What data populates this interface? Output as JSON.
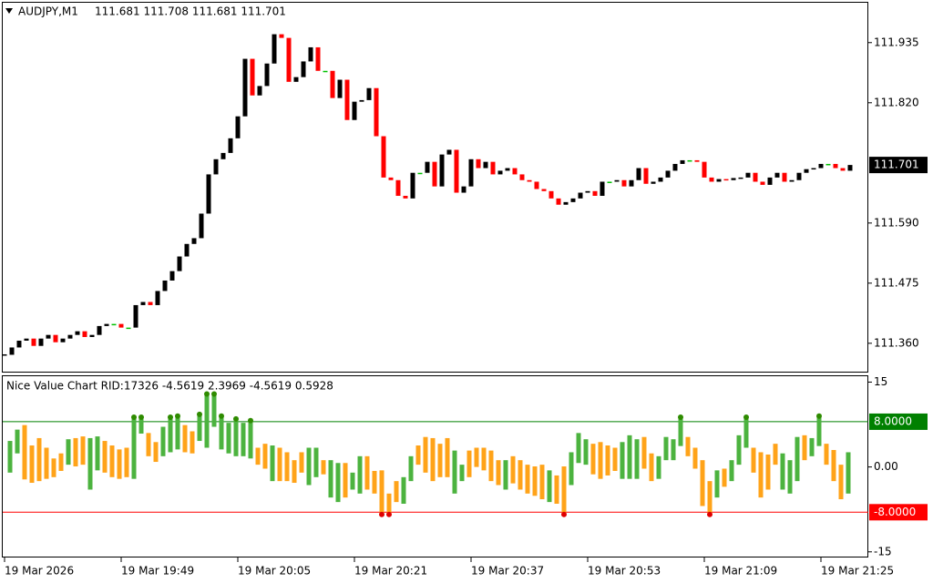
{
  "chart_data": [
    {
      "type": "candlestick",
      "title": "AUDJPY,M1",
      "quote": "111.681 111.708 111.681 111.701",
      "up_color": "#000000",
      "down_color": "#ff0000",
      "flat_color": "#00c000",
      "categories": [
        "19 Mar 2026",
        null,
        null,
        null,
        null,
        null,
        null,
        null,
        null,
        null,
        null,
        null,
        null,
        null,
        null,
        null,
        "19 Mar 19:49",
        null,
        null,
        null,
        null,
        null,
        null,
        null,
        null,
        null,
        null,
        null,
        null,
        null,
        null,
        null,
        "19 Mar 20:05",
        null,
        null,
        null,
        null,
        null,
        null,
        null,
        null,
        null,
        null,
        null,
        null,
        null,
        null,
        null,
        "19 Mar 20:21",
        null,
        null,
        null,
        null,
        null,
        null,
        null,
        null,
        null,
        null,
        null,
        null,
        null,
        null,
        null,
        "19 Mar 20:37",
        null,
        null,
        null,
        null,
        null,
        null,
        null,
        null,
        null,
        null,
        null,
        null,
        null,
        null,
        null,
        "19 Mar 20:53",
        null,
        null,
        null,
        null,
        null,
        null,
        null,
        null,
        null,
        null,
        null,
        null,
        null,
        null,
        null,
        "19 Mar 21:09",
        null,
        null,
        null,
        null,
        null,
        null,
        null,
        null,
        null,
        null,
        null,
        null,
        null,
        null,
        null,
        "19 Mar 21:25",
        null,
        null,
        null,
        null
      ],
      "values": [
        111.338,
        111.352,
        111.365,
        111.369,
        111.355,
        111.369,
        111.376,
        111.362,
        111.369,
        111.376,
        111.383,
        111.372,
        111.376,
        111.393,
        111.397,
        111.397,
        111.39,
        111.39,
        111.433,
        111.439,
        111.433,
        111.46,
        111.48,
        111.498,
        111.526,
        111.55,
        111.561,
        111.608,
        111.683,
        111.712,
        111.724,
        111.752,
        111.794,
        111.904,
        111.834,
        111.852,
        111.895,
        111.951,
        111.944,
        111.86,
        111.869,
        111.899,
        111.926,
        111.881,
        111.881,
        111.829,
        111.864,
        111.787,
        111.822,
        111.825,
        111.848,
        111.756,
        111.677,
        111.672,
        111.642,
        111.637,
        111.686,
        111.686,
        111.707,
        111.66,
        111.721,
        111.73,
        111.648,
        111.66,
        111.712,
        111.695,
        111.707,
        111.683,
        111.69,
        111.695,
        111.683,
        111.672,
        111.669,
        111.655,
        111.651,
        111.637,
        111.625,
        111.63,
        111.637,
        111.648,
        111.651,
        111.642,
        111.669,
        111.669,
        111.672,
        111.66,
        111.672,
        111.695,
        111.665,
        111.669,
        111.677,
        111.69,
        111.703,
        111.71,
        111.71,
        111.707,
        111.677,
        111.669,
        111.674,
        111.672,
        111.676,
        111.677,
        111.686,
        111.669,
        111.663,
        111.677,
        111.686,
        111.669,
        111.672,
        111.686,
        111.693,
        111.695,
        111.703,
        111.703,
        111.695,
        111.69,
        111.701
      ],
      "ylim": [
        111.304,
        112.013
      ],
      "yticks": [
        {
          "value": 111.36,
          "label": "111.360"
        },
        111.475,
        {
          "value": 111.59,
          "label": "111.590"
        },
        {
          "value": 111.82,
          "label": "111.820"
        },
        111.935
      ]
    },
    {
      "type": "range_bar",
      "title": "Nice Value Chart RID:17326 -4.5619 2.3969 -4.5619 0.5928",
      "values": [
        [
          -1,
          4.6
        ],
        [
          2.4,
          6.6
        ],
        [
          -2.2,
          7.4
        ],
        [
          -2.8,
          3.8
        ],
        [
          -2.5,
          5.1
        ],
        [
          -2.1,
          3.4
        ],
        [
          -1.8,
          1.5
        ],
        [
          -0.7,
          2.4
        ],
        [
          0.4,
          4.9
        ],
        [
          0.1,
          5.1
        ],
        [
          0.4,
          5.4
        ],
        [
          -4,
          5.1
        ],
        [
          -0.6,
          5.4
        ],
        [
          -1,
          4.6
        ],
        [
          -1.8,
          3.8
        ],
        [
          -2.1,
          3.1
        ],
        [
          -1.8,
          3.4
        ],
        [
          -2.1,
          8.8
        ],
        [
          5.9,
          8.8
        ],
        [
          1.9,
          6
        ],
        [
          0.9,
          4.4
        ],
        [
          1.9,
          7.1
        ],
        [
          2.6,
          8.8
        ],
        [
          3.1,
          9
        ],
        [
          2.6,
          7.4
        ],
        [
          2.4,
          6.3
        ],
        [
          4.6,
          9.3
        ],
        [
          3.4,
          12.9
        ],
        [
          7.1,
          12.9
        ],
        [
          3.1,
          9
        ],
        [
          2.4,
          7.8
        ],
        [
          1.9,
          8.5
        ],
        [
          1.9,
          7.8
        ],
        [
          1.5,
          8.2
        ],
        [
          0.4,
          3.4
        ],
        [
          -0.3,
          4.1
        ],
        [
          -2.5,
          3.8
        ],
        [
          -2.5,
          3.4
        ],
        [
          -2.5,
          2.6
        ],
        [
          -2.8,
          1.2
        ],
        [
          -1,
          2.6
        ],
        [
          -3.2,
          3.4
        ],
        [
          -1.8,
          3.4
        ],
        [
          -1.3,
          1.2
        ],
        [
          -5.4,
          1.2
        ],
        [
          -6.2,
          0.7
        ],
        [
          -5.4,
          0.7
        ],
        [
          -4,
          -1
        ],
        [
          -4.7,
          1.9
        ],
        [
          -4,
          1.9
        ],
        [
          -4.7,
          -0.7
        ],
        [
          -8.4,
          -0.6
        ],
        [
          -8.4,
          -4.7
        ],
        [
          -6.2,
          -2.5
        ],
        [
          -6.5,
          -1.8
        ],
        [
          -2.5,
          1.9
        ],
        [
          0.4,
          3.8
        ],
        [
          -1,
          5.3
        ],
        [
          -2.5,
          5.1
        ],
        [
          -1.8,
          4.1
        ],
        [
          -1.8,
          5.1
        ],
        [
          -4.7,
          2.9
        ],
        [
          -2.5,
          0.4
        ],
        [
          -1.8,
          2.9
        ],
        [
          0,
          3.4
        ],
        [
          -0.6,
          3.4
        ],
        [
          -2.5,
          2.9
        ],
        [
          -3.2,
          1.2
        ],
        [
          -4,
          1.2
        ],
        [
          -2.9,
          1.9
        ],
        [
          -4,
          1.2
        ],
        [
          -4.7,
          0.4
        ],
        [
          -5.1,
          0.1
        ],
        [
          -5.7,
          0.4
        ],
        [
          -6.2,
          -0.6
        ],
        [
          -6.5,
          -1.5
        ],
        [
          -8.4,
          0.1
        ],
        [
          -3.2,
          2.6
        ],
        [
          0.7,
          6
        ],
        [
          0.4,
          4.9
        ],
        [
          -1.3,
          4.1
        ],
        [
          -2.1,
          4.4
        ],
        [
          -1.5,
          3.8
        ],
        [
          -0.7,
          3.4
        ],
        [
          -2.1,
          4.4
        ],
        [
          -2.1,
          5.6
        ],
        [
          -2.1,
          4.9
        ],
        [
          -0.3,
          5.3
        ],
        [
          -2.5,
          2.4
        ],
        [
          -2.1,
          1.9
        ],
        [
          1.2,
          5.3
        ],
        [
          1.2,
          4.9
        ],
        [
          3.7,
          8.8
        ],
        [
          1.9,
          5.3
        ],
        [
          -0.3,
          3.4
        ],
        [
          -6.9,
          1.2
        ],
        [
          -8.4,
          -2.5
        ],
        [
          -5.4,
          -0.6
        ],
        [
          -3.5,
          -0.3
        ],
        [
          -2.5,
          1.2
        ],
        [
          0.4,
          5.6
        ],
        [
          3.4,
          8.8
        ],
        [
          -1,
          3.4
        ],
        [
          -5.4,
          2.6
        ],
        [
          -4,
          2.2
        ],
        [
          0.4,
          4.1
        ],
        [
          -4,
          2.4
        ],
        [
          -4.7,
          1.2
        ],
        [
          -2.5,
          5.3
        ],
        [
          1.2,
          5.6
        ],
        [
          1.9,
          5.1
        ],
        [
          3.7,
          9
        ],
        [
          0.4,
          4.1
        ],
        [
          -2.5,
          3
        ],
        [
          -5.7,
          0.4
        ],
        [
          -4.7,
          2.6
        ]
      ],
      "colors": [
        "#4cb33f",
        "#4cb33f",
        "#ffa319",
        "#ffa319",
        "#ffa319",
        "#ffa319",
        "#ffa319",
        "#ffa319",
        "#4cb33f",
        "#ffa319",
        "#ffa319",
        "#4cb33f",
        "#4cb33f",
        "#ffa319",
        "#ffa319",
        "#ffa319",
        "#ffa319",
        "#4cb33f",
        "#4cb33f",
        "#ffa319",
        "#ffa319",
        "#4cb33f",
        "#4cb33f",
        "#4cb33f",
        "#ffa319",
        "#ffa319",
        "#4cb33f",
        "#4cb33f",
        "#4cb33f",
        "#4cb33f",
        "#4cb33f",
        "#4cb33f",
        "#4cb33f",
        "#4cb33f",
        "#ffa319",
        "#ffa319",
        "#4cb33f",
        "#ffa319",
        "#ffa319",
        "#ffa319",
        "#ffa319",
        "#4cb33f",
        "#4cb33f",
        "#ffa319",
        "#4cb33f",
        "#4cb33f",
        "#ffa319",
        "#4cb33f",
        "#4cb33f",
        "#ffa319",
        "#ffa319",
        "#ffa319",
        "#ffa319",
        "#ffa319",
        "#4cb33f",
        "#4cb33f",
        "#ffa319",
        "#ffa319",
        "#ffa319",
        "#ffa319",
        "#ffa319",
        "#4cb33f",
        "#4cb33f",
        "#ffa319",
        "#ffa319",
        "#ffa319",
        "#ffa319",
        "#ffa319",
        "#4cb33f",
        "#ffa319",
        "#ffa319",
        "#ffa319",
        "#ffa319",
        "#ffa319",
        "#4cb33f",
        "#ffa319",
        "#ffa319",
        "#4cb33f",
        "#4cb33f",
        "#4cb33f",
        "#ffa319",
        "#ffa319",
        "#ffa319",
        "#ffa319",
        "#4cb33f",
        "#4cb33f",
        "#4cb33f",
        "#ffa319",
        "#ffa319",
        "#4cb33f",
        "#4cb33f",
        "#4cb33f",
        "#4cb33f",
        "#ffa319",
        "#ffa319",
        "#ffa319",
        "#ffa319",
        "#4cb33f",
        "#ffa319",
        "#4cb33f",
        "#4cb33f",
        "#4cb33f",
        "#ffa319",
        "#ffa319",
        "#ffa319",
        "#ffa319",
        "#4cb33f",
        "#4cb33f",
        "#4cb33f",
        "#ffa319",
        "#4cb33f",
        "#4cb33f",
        "#ffa319",
        "#ffa319",
        "#ffa319",
        "#4cb33f"
      ],
      "ylim": [
        -16,
        16.2
      ],
      "yticks": [
        -15,
        {
          "value": 0,
          "label": "0.00"
        },
        15
      ],
      "levels": [
        {
          "value": 8,
          "label": "8.0000",
          "color": "#008000",
          "marker_color": "#2e8b00"
        },
        {
          "value": -8,
          "label": "-8.0000",
          "color": "#ff0000",
          "marker_color": "#e00000"
        }
      ]
    }
  ]
}
